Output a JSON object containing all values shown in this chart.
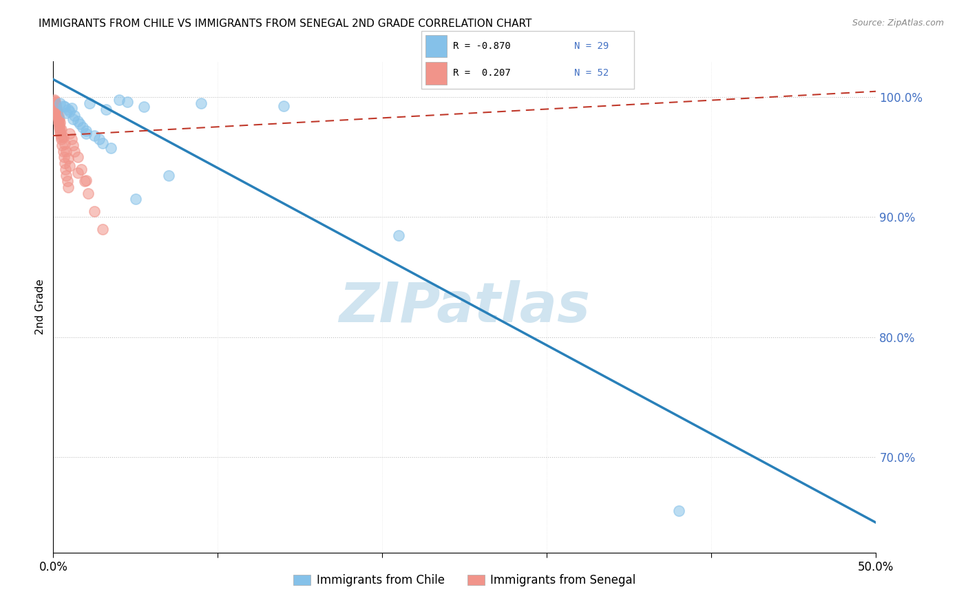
{
  "title": "IMMIGRANTS FROM CHILE VS IMMIGRANTS FROM SENEGAL 2ND GRADE CORRELATION CHART",
  "source": "Source: ZipAtlas.com",
  "ylabel": "2nd Grade",
  "xlim": [
    0.0,
    50.0
  ],
  "ylim": [
    62.0,
    103.0
  ],
  "yticks": [
    70.0,
    80.0,
    90.0,
    100.0
  ],
  "ytick_labels": [
    "70.0%",
    "80.0%",
    "90.0%",
    "100.0%"
  ],
  "xtick_labels": [
    "0.0%",
    "",
    "",
    "",
    "",
    "50.0%"
  ],
  "chile_R": -0.87,
  "chile_N": 29,
  "senegal_R": 0.207,
  "senegal_N": 52,
  "chile_color": "#85c1e9",
  "senegal_color": "#f1948a",
  "chile_line_color": "#2980b9",
  "senegal_line_color": "#c0392b",
  "watermark": "ZIPatlas",
  "watermark_color": "#d0e4f0",
  "legend_label_chile": "Immigrants from Chile",
  "legend_label_senegal": "Immigrants from Senegal",
  "chile_line_x0": 0.0,
  "chile_line_y0": 101.5,
  "chile_line_x1": 50.0,
  "chile_line_y1": 64.5,
  "senegal_line_x0": 0.0,
  "senegal_line_y0": 96.8,
  "senegal_line_x1": 50.0,
  "senegal_line_y1": 100.5,
  "chile_scatter_x": [
    0.4,
    0.6,
    0.7,
    0.9,
    1.0,
    1.1,
    1.3,
    1.5,
    1.6,
    1.8,
    2.0,
    2.2,
    2.5,
    2.8,
    3.0,
    3.5,
    4.0,
    4.5,
    5.0,
    5.5,
    7.0,
    9.0,
    14.0,
    21.0,
    38.0,
    0.8,
    1.2,
    2.0,
    3.2
  ],
  "chile_scatter_y": [
    99.5,
    99.3,
    99.2,
    99.0,
    98.8,
    99.1,
    98.5,
    98.0,
    97.8,
    97.5,
    97.2,
    99.5,
    96.8,
    96.5,
    96.2,
    95.8,
    99.8,
    99.6,
    91.5,
    99.2,
    93.5,
    99.5,
    99.3,
    88.5,
    65.5,
    98.7,
    98.2,
    97.0,
    99.0
  ],
  "senegal_scatter_x": [
    0.05,
    0.08,
    0.1,
    0.12,
    0.15,
    0.18,
    0.2,
    0.22,
    0.25,
    0.28,
    0.3,
    0.32,
    0.35,
    0.38,
    0.4,
    0.42,
    0.45,
    0.48,
    0.5,
    0.55,
    0.6,
    0.65,
    0.7,
    0.75,
    0.8,
    0.85,
    0.9,
    1.0,
    1.1,
    1.2,
    1.3,
    1.5,
    1.7,
    1.9,
    2.1,
    2.5,
    3.0,
    0.1,
    0.15,
    0.2,
    0.25,
    0.3,
    0.35,
    0.4,
    0.5,
    0.6,
    0.7,
    0.8,
    0.9,
    1.0,
    1.5,
    2.0
  ],
  "senegal_scatter_y": [
    99.8,
    99.6,
    99.5,
    99.3,
    99.2,
    99.0,
    98.8,
    98.6,
    98.5,
    98.3,
    98.1,
    97.9,
    97.7,
    97.5,
    97.3,
    97.1,
    96.9,
    96.7,
    96.5,
    96.0,
    95.5,
    95.0,
    94.5,
    94.0,
    93.5,
    93.0,
    92.5,
    97.0,
    96.5,
    96.0,
    95.5,
    95.0,
    94.0,
    93.0,
    92.0,
    90.5,
    89.0,
    99.7,
    99.4,
    99.1,
    98.8,
    98.5,
    98.2,
    97.9,
    97.3,
    96.7,
    96.1,
    95.5,
    94.9,
    94.3,
    93.7,
    93.1
  ]
}
